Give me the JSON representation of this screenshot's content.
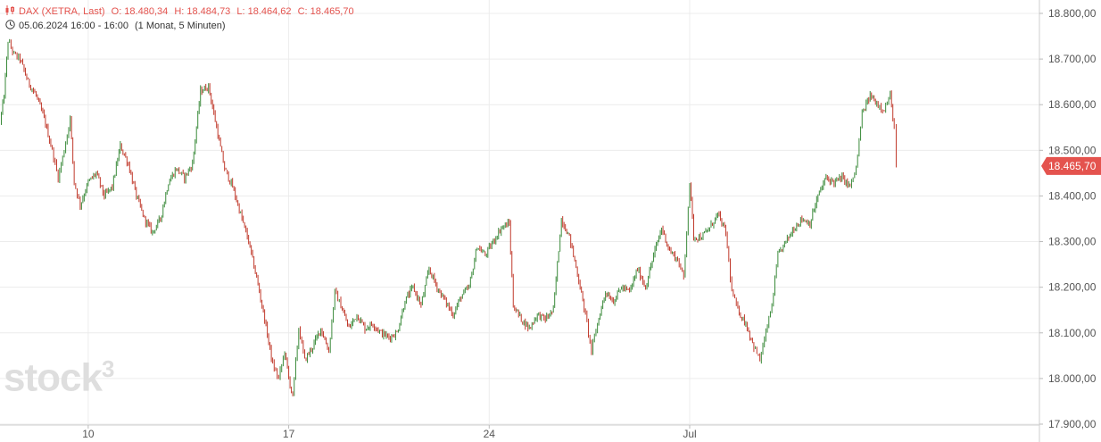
{
  "header": {
    "instrument": "DAX (XETRA, Last)",
    "open": "O: 18.480,34",
    "high": "H: 18.484,73",
    "low": "L: 18.464,62",
    "close": "C: 18.465,70",
    "period": "05.06.2024 16:00 - 16:00",
    "interval": "(1 Monat, 5 Minuten)"
  },
  "watermark": {
    "text": "stock",
    "sup": "3"
  },
  "colors": {
    "up": "#3a8a3a",
    "down": "#c0392b",
    "accent": "#e4534e",
    "grid": "#ececec"
  },
  "chart_data": {
    "type": "line",
    "ylim": [
      17900,
      18800
    ],
    "yticks": [
      {
        "value": 18800,
        "label": "18.800,00"
      },
      {
        "value": 18700,
        "label": "18.700,00"
      },
      {
        "value": 18600,
        "label": "18.600,00"
      },
      {
        "value": 18500,
        "label": "18.500,00"
      },
      {
        "value": 18400,
        "label": "18.400,00"
      },
      {
        "value": 18300,
        "label": "18.300,00"
      },
      {
        "value": 18200,
        "label": "18.200,00"
      },
      {
        "value": 18100,
        "label": "18.100,00"
      },
      {
        "value": 18000,
        "label": "18.000,00"
      },
      {
        "value": 17900,
        "label": "17.900,00"
      }
    ],
    "xticks": [
      {
        "x": 4,
        "label": "10"
      },
      {
        "x": 9,
        "label": "17"
      },
      {
        "x": 14,
        "label": "24"
      },
      {
        "x": 19,
        "label": "Jul"
      }
    ],
    "xlim": [
      1.8,
      29.5
    ],
    "last_value": 18465.7,
    "last_label": "18.465,70",
    "grid": true,
    "series": [
      {
        "values": [
          [
            1.8,
            18560
          ],
          [
            1.9,
            18620
          ],
          [
            2.0,
            18740
          ],
          [
            2.15,
            18710
          ],
          [
            2.3,
            18700
          ],
          [
            2.5,
            18650
          ],
          [
            2.7,
            18620
          ],
          [
            2.9,
            18570
          ],
          [
            3.1,
            18500
          ],
          [
            3.25,
            18440
          ],
          [
            3.4,
            18500
          ],
          [
            3.55,
            18570
          ],
          [
            3.65,
            18430
          ],
          [
            3.8,
            18380
          ],
          [
            4.0,
            18430
          ],
          [
            4.2,
            18450
          ],
          [
            4.4,
            18400
          ],
          [
            4.6,
            18420
          ],
          [
            4.8,
            18510
          ],
          [
            5.0,
            18470
          ],
          [
            5.2,
            18400
          ],
          [
            5.4,
            18350
          ],
          [
            5.6,
            18320
          ],
          [
            5.8,
            18350
          ],
          [
            6.0,
            18430
          ],
          [
            6.2,
            18460
          ],
          [
            6.4,
            18440
          ],
          [
            6.6,
            18470
          ],
          [
            6.8,
            18630
          ],
          [
            7.0,
            18640
          ],
          [
            7.2,
            18550
          ],
          [
            7.4,
            18460
          ],
          [
            7.6,
            18420
          ],
          [
            7.8,
            18360
          ],
          [
            8.0,
            18300
          ],
          [
            8.2,
            18220
          ],
          [
            8.4,
            18130
          ],
          [
            8.6,
            18030
          ],
          [
            8.75,
            18000
          ],
          [
            8.9,
            18060
          ],
          [
            9.0,
            18000
          ],
          [
            9.1,
            17960
          ],
          [
            9.25,
            18110
          ],
          [
            9.4,
            18040
          ],
          [
            9.6,
            18070
          ],
          [
            9.8,
            18110
          ],
          [
            10.0,
            18060
          ],
          [
            10.15,
            18190
          ],
          [
            10.3,
            18160
          ],
          [
            10.5,
            18110
          ],
          [
            10.7,
            18140
          ],
          [
            10.9,
            18110
          ],
          [
            11.1,
            18120
          ],
          [
            11.3,
            18100
          ],
          [
            11.5,
            18090
          ],
          [
            11.7,
            18100
          ],
          [
            11.9,
            18170
          ],
          [
            12.1,
            18200
          ],
          [
            12.3,
            18160
          ],
          [
            12.5,
            18240
          ],
          [
            12.7,
            18200
          ],
          [
            12.9,
            18170
          ],
          [
            13.1,
            18140
          ],
          [
            13.3,
            18180
          ],
          [
            13.5,
            18200
          ],
          [
            13.7,
            18290
          ],
          [
            13.9,
            18270
          ],
          [
            14.1,
            18300
          ],
          [
            14.3,
            18330
          ],
          [
            14.5,
            18340
          ],
          [
            14.6,
            18160
          ],
          [
            14.8,
            18130
          ],
          [
            15.0,
            18110
          ],
          [
            15.2,
            18140
          ],
          [
            15.4,
            18130
          ],
          [
            15.6,
            18150
          ],
          [
            15.8,
            18350
          ],
          [
            16.0,
            18310
          ],
          [
            16.2,
            18230
          ],
          [
            16.4,
            18140
          ],
          [
            16.55,
            18060
          ],
          [
            16.7,
            18120
          ],
          [
            16.9,
            18190
          ],
          [
            17.1,
            18170
          ],
          [
            17.3,
            18200
          ],
          [
            17.5,
            18190
          ],
          [
            17.7,
            18240
          ],
          [
            17.9,
            18200
          ],
          [
            18.1,
            18270
          ],
          [
            18.3,
            18330
          ],
          [
            18.5,
            18280
          ],
          [
            18.7,
            18260
          ],
          [
            18.85,
            18220
          ],
          [
            19.0,
            18430
          ],
          [
            19.1,
            18310
          ],
          [
            19.3,
            18310
          ],
          [
            19.5,
            18330
          ],
          [
            19.7,
            18360
          ],
          [
            19.9,
            18320
          ],
          [
            20.05,
            18190
          ],
          [
            20.2,
            18150
          ],
          [
            20.4,
            18120
          ],
          [
            20.6,
            18070
          ],
          [
            20.75,
            18040
          ],
          [
            20.9,
            18100
          ],
          [
            21.05,
            18160
          ],
          [
            21.2,
            18270
          ],
          [
            21.4,
            18300
          ],
          [
            21.6,
            18330
          ],
          [
            21.8,
            18350
          ],
          [
            22.0,
            18340
          ],
          [
            22.2,
            18400
          ],
          [
            22.4,
            18440
          ],
          [
            22.6,
            18430
          ],
          [
            22.8,
            18440
          ],
          [
            23.0,
            18420
          ],
          [
            23.15,
            18460
          ],
          [
            23.3,
            18580
          ],
          [
            23.5,
            18620
          ],
          [
            23.7,
            18600
          ],
          [
            23.85,
            18590
          ],
          [
            24.0,
            18620
          ],
          [
            24.1,
            18550
          ],
          [
            24.15,
            18460
          ]
        ]
      }
    ]
  }
}
